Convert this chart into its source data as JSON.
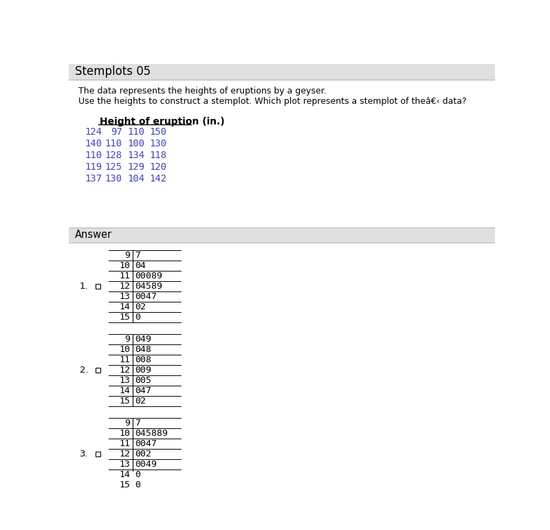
{
  "title": "Stemplots 05",
  "title_bg": "#e0e0e0",
  "body_bg": "#ffffff",
  "answer_bg": "#e0e0e0",
  "text_color": "#000000",
  "description_line1": "The data represents the heights of eruptions by a geyser.",
  "description_line2": "Use the heights to construct a stemplot. Which plot represents a stemplot of theâ€‹ data?",
  "table_header": "Height of eruption (in.)",
  "table_data": [
    [
      "124",
      " 97",
      "110",
      "150"
    ],
    [
      "140",
      "110",
      "100",
      "130"
    ],
    [
      "110",
      "128",
      "134",
      "118"
    ],
    [
      "119",
      "125",
      "129",
      "120"
    ],
    [
      "137",
      "130",
      "104",
      "142"
    ]
  ],
  "table_color": "#4444bb",
  "stemplot1": {
    "label": "1.",
    "rows": [
      [
        " 9",
        "7"
      ],
      [
        "10",
        "04"
      ],
      [
        "11",
        "00089"
      ],
      [
        "12",
        "04589"
      ],
      [
        "13",
        "0047"
      ],
      [
        "14",
        "02"
      ],
      [
        "15",
        "0"
      ]
    ]
  },
  "stemplot2": {
    "label": "2.",
    "rows": [
      [
        " 9",
        "049"
      ],
      [
        "10",
        "048"
      ],
      [
        "11",
        "008"
      ],
      [
        "12",
        "009"
      ],
      [
        "13",
        "005"
      ],
      [
        "14",
        "047"
      ],
      [
        "15",
        "02"
      ]
    ]
  },
  "stemplot3": {
    "label": "3.",
    "rows": [
      [
        " 9",
        "7"
      ],
      [
        "10",
        "045889"
      ],
      [
        "11",
        "0047"
      ],
      [
        "12",
        "002"
      ],
      [
        "13",
        "0049"
      ],
      [
        "14",
        "0"
      ],
      [
        "15",
        "0"
      ]
    ]
  }
}
